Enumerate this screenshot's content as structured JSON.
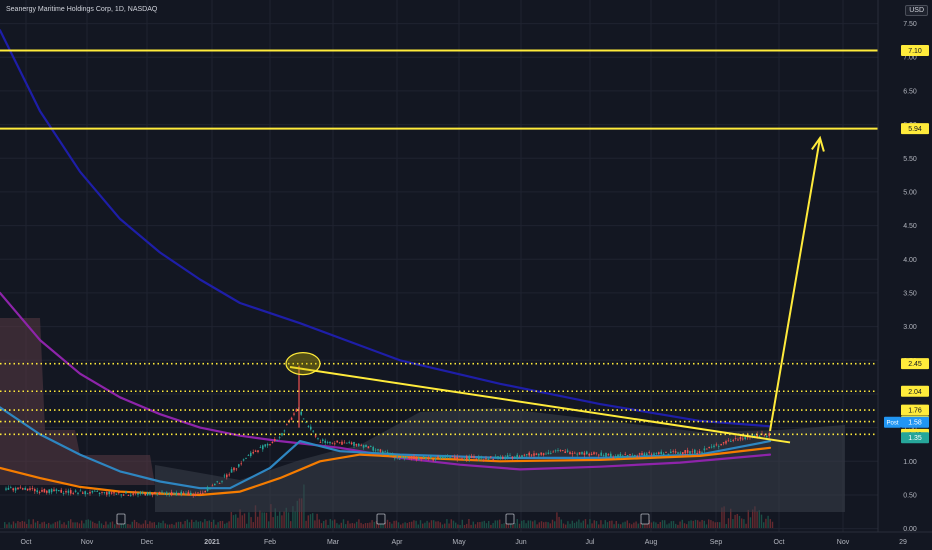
{
  "header": {
    "title": "Seanergy Maritime Holdings Corp, 1D, NASDAQ",
    "currency": "USD"
  },
  "chart_data": {
    "type": "line",
    "ylim": [
      -0.05,
      7.85
    ],
    "grid": true,
    "y_ticks": [
      "7.50",
      "7.00",
      "6.50",
      "6.00",
      "5.50",
      "5.00",
      "4.50",
      "4.00",
      "3.50",
      "3.00",
      "2.50",
      "2.00",
      "1.50",
      "1.00",
      "0.50",
      "0.00"
    ],
    "x_ticks": [
      "Oct",
      "Nov",
      "Dec",
      "2021",
      "Feb",
      "Mar",
      "Apr",
      "May",
      "Jun",
      "Jul",
      "Aug",
      "Sep",
      "Oct",
      "Nov",
      "29"
    ],
    "resistance_levels": [
      {
        "value": 7.1,
        "label": "7.10",
        "style": "solid"
      },
      {
        "value": 5.94,
        "label": "5.94",
        "style": "solid"
      },
      {
        "value": 2.45,
        "label": "2.45",
        "style": "dotted"
      },
      {
        "value": 2.04,
        "label": "2.04",
        "style": "dotted"
      },
      {
        "value": 1.76,
        "label": "1.76",
        "style": "dotted"
      },
      {
        "value": 1.59,
        "label": "1.59",
        "style": "dotted"
      },
      {
        "value": 1.4,
        "label": "1.40",
        "style": "dotted"
      }
    ],
    "price_badges": [
      {
        "value": 1.58,
        "label": "1.58",
        "tag": "Post",
        "color": "#2196f3"
      },
      {
        "value": 1.35,
        "label": "1.35",
        "tag": "",
        "color": "#26a69a"
      }
    ],
    "series": [
      {
        "color": "#1e1ea8",
        "x": [
          0,
          40,
          80,
          120,
          160,
          200,
          240,
          300,
          400,
          500,
          600,
          700,
          770
        ],
        "y": [
          7.4,
          6.2,
          5.3,
          4.6,
          4.1,
          3.7,
          3.35,
          3.05,
          2.5,
          2.15,
          1.85,
          1.6,
          1.52
        ]
      },
      {
        "color": "#8e24aa",
        "x": [
          0,
          40,
          80,
          120,
          160,
          200,
          240,
          280,
          340,
          400,
          460,
          520,
          600,
          680,
          770
        ],
        "y": [
          3.5,
          2.8,
          2.3,
          1.95,
          1.7,
          1.5,
          1.38,
          1.3,
          1.2,
          1.05,
          0.95,
          0.88,
          0.92,
          0.98,
          1.1
        ]
      },
      {
        "color": "#2e86c1",
        "x": [
          0,
          40,
          80,
          120,
          160,
          200,
          230,
          270,
          300,
          340,
          400,
          500,
          600,
          700,
          770
        ],
        "y": [
          1.8,
          1.4,
          1.1,
          0.85,
          0.7,
          0.6,
          0.6,
          0.9,
          1.3,
          1.15,
          1.1,
          1.05,
          1.05,
          1.1,
          1.3
        ]
      },
      {
        "color": "#f57c00",
        "x": [
          0,
          40,
          80,
          120,
          160,
          200,
          240,
          280,
          320,
          360,
          420,
          500,
          600,
          700,
          770
        ],
        "y": [
          0.9,
          0.75,
          0.62,
          0.55,
          0.52,
          0.5,
          0.55,
          0.75,
          1.0,
          1.1,
          1.05,
          1.0,
          1.02,
          1.08,
          1.2
        ]
      }
    ]
  },
  "annotations": {
    "trendline": {
      "x1": 290,
      "y1": 2.4,
      "x2": 790,
      "y2": 1.28
    },
    "arrow": {
      "x1": 770,
      "y1": 1.45,
      "x2": 820,
      "y2": 5.8
    },
    "circle": {
      "cx": 303,
      "cy": 2.45
    }
  }
}
